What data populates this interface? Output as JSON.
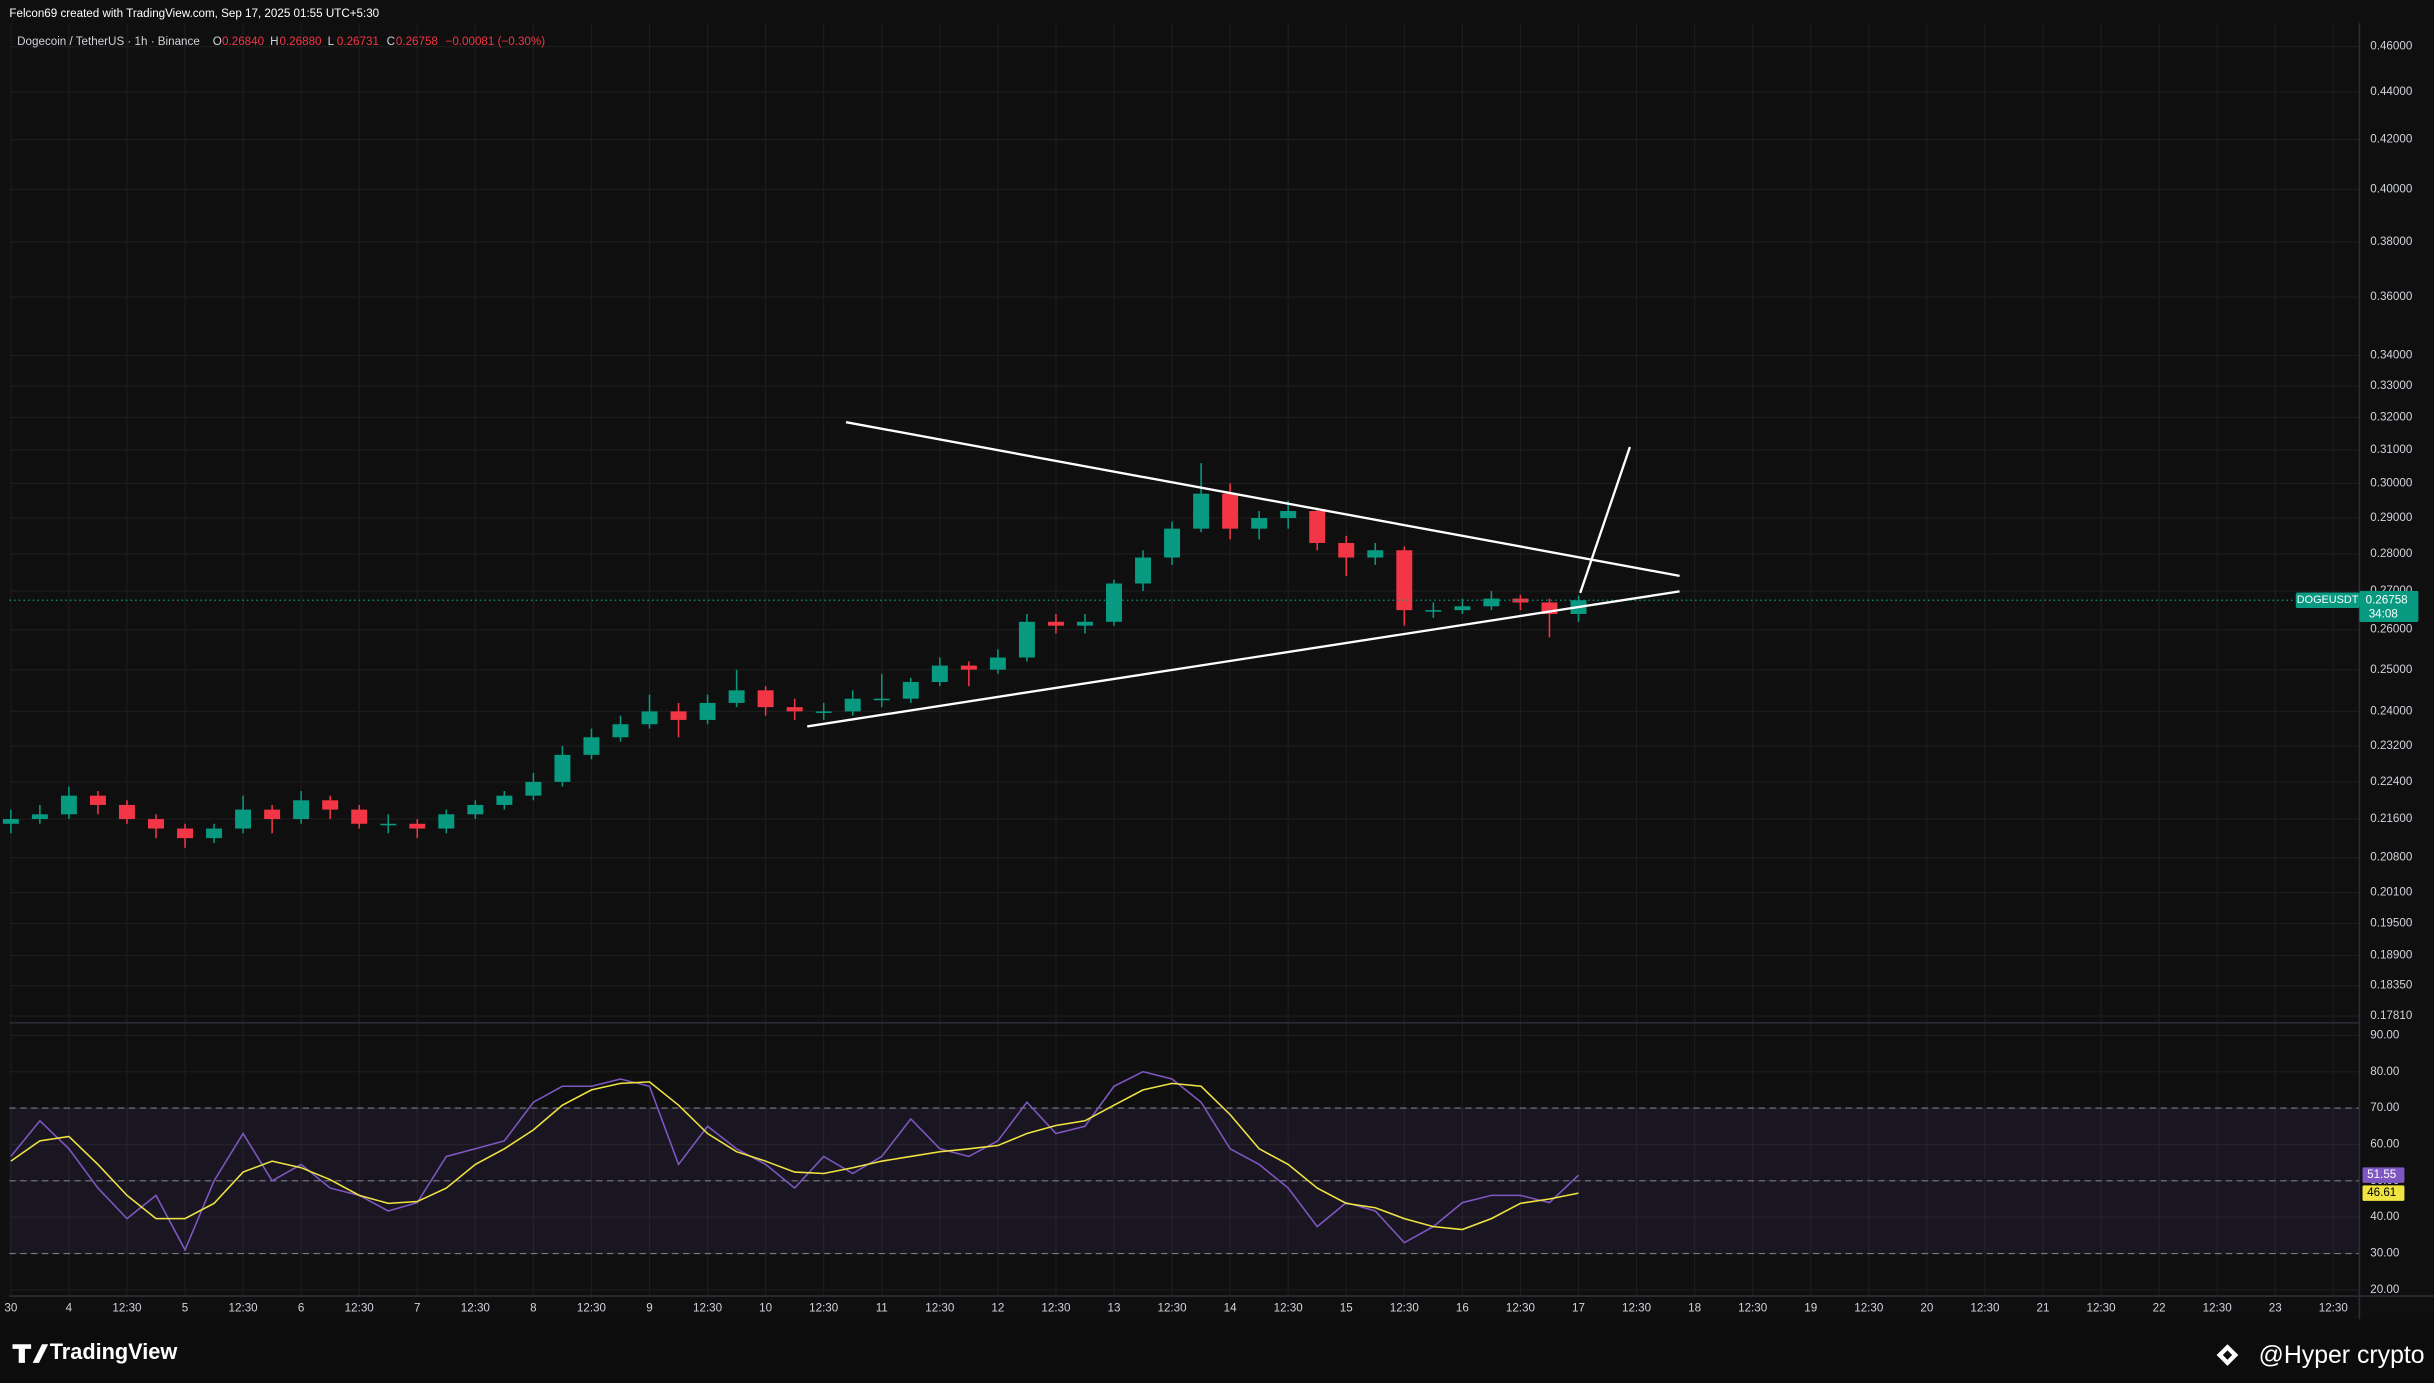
{
  "header": {
    "credit": "Felcon69 created with TradingView.com, Sep 17, 2025 01:55 UTC+5:30",
    "footer_brand": "TradingView",
    "watermark": "@Hyper crypto"
  },
  "chart_data": [
    {
      "type": "candlestick",
      "title": "Dogecoin / TetherUS · 1h · Binance",
      "ohlc_legend": [
        {
          "label": "O",
          "value": "0.26840"
        },
        {
          "label": "H",
          "value": "0.26880"
        },
        {
          "label": "L",
          "value": "0.26731"
        },
        {
          "label": "C",
          "value": "0.26758"
        }
      ],
      "change": "−0.00081 (−0.30%)",
      "symbol": "DOGEUSDT",
      "countdown": "34:08",
      "x": [
        0,
        6,
        12,
        18,
        24,
        30,
        36,
        42,
        48,
        54,
        60,
        66,
        72,
        78,
        84,
        90,
        96,
        102,
        108,
        114,
        120,
        126,
        132,
        138,
        144,
        150,
        156,
        162,
        168,
        174,
        180,
        186,
        192,
        198,
        204,
        210,
        216,
        222,
        228,
        234,
        240,
        246,
        252,
        258,
        264,
        270,
        276,
        282,
        288,
        294,
        300,
        306,
        312,
        318,
        324
      ],
      "open": [
        0.215,
        0.216,
        0.217,
        0.221,
        0.219,
        0.216,
        0.214,
        0.212,
        0.214,
        0.218,
        0.216,
        0.22,
        0.218,
        0.215,
        0.215,
        0.214,
        0.217,
        0.219,
        0.221,
        0.224,
        0.23,
        0.234,
        0.237,
        0.24,
        0.238,
        0.242,
        0.245,
        0.241,
        0.24,
        0.24,
        0.243,
        0.243,
        0.247,
        0.251,
        0.25,
        0.253,
        0.262,
        0.261,
        0.262,
        0.272,
        0.279,
        0.287,
        0.297,
        0.287,
        0.29,
        0.292,
        0.283,
        0.279,
        0.281,
        0.265,
        0.265,
        0.266,
        0.268,
        0.267,
        0.264
      ],
      "high": [
        0.218,
        0.219,
        0.223,
        0.222,
        0.22,
        0.217,
        0.215,
        0.215,
        0.221,
        0.219,
        0.222,
        0.221,
        0.219,
        0.217,
        0.216,
        0.218,
        0.22,
        0.222,
        0.226,
        0.232,
        0.236,
        0.239,
        0.244,
        0.242,
        0.244,
        0.25,
        0.246,
        0.243,
        0.242,
        0.245,
        0.249,
        0.248,
        0.253,
        0.252,
        0.255,
        0.264,
        0.264,
        0.264,
        0.273,
        0.281,
        0.289,
        0.306,
        0.3,
        0.292,
        0.295,
        0.293,
        0.285,
        0.283,
        0.282,
        0.267,
        0.268,
        0.27,
        0.269,
        0.268,
        0.2688
      ],
      "low": [
        0.213,
        0.215,
        0.216,
        0.217,
        0.215,
        0.212,
        0.21,
        0.211,
        0.213,
        0.213,
        0.215,
        0.216,
        0.214,
        0.213,
        0.212,
        0.213,
        0.216,
        0.218,
        0.22,
        0.223,
        0.229,
        0.233,
        0.236,
        0.234,
        0.237,
        0.241,
        0.239,
        0.238,
        0.238,
        0.239,
        0.241,
        0.242,
        0.246,
        0.246,
        0.249,
        0.252,
        0.259,
        0.259,
        0.261,
        0.27,
        0.277,
        0.286,
        0.284,
        0.284,
        0.287,
        0.281,
        0.274,
        0.277,
        0.261,
        0.263,
        0.264,
        0.265,
        0.265,
        0.258,
        0.262
      ],
      "close": [
        0.216,
        0.217,
        0.221,
        0.219,
        0.216,
        0.214,
        0.212,
        0.214,
        0.218,
        0.216,
        0.22,
        0.218,
        0.215,
        0.215,
        0.214,
        0.217,
        0.219,
        0.221,
        0.224,
        0.23,
        0.234,
        0.237,
        0.24,
        0.238,
        0.242,
        0.245,
        0.241,
        0.24,
        0.24,
        0.243,
        0.243,
        0.247,
        0.251,
        0.25,
        0.253,
        0.262,
        0.261,
        0.262,
        0.272,
        0.279,
        0.287,
        0.297,
        0.287,
        0.29,
        0.292,
        0.283,
        0.279,
        0.281,
        0.265,
        0.265,
        0.266,
        0.268,
        0.267,
        0.264,
        0.26758
      ],
      "up_color": "#089981",
      "down_color": "#f23645",
      "log_scale": true,
      "grid": true,
      "xlim": [
        -0.3,
        485.4
      ],
      "ylim": [
        0.1772,
        0.4685
      ],
      "yticks": [
        {
          "value": 0.46,
          "label": "0.46000"
        },
        {
          "value": 0.44,
          "label": "0.44000"
        },
        {
          "value": 0.42,
          "label": "0.42000"
        },
        {
          "value": 0.4,
          "label": "0.40000"
        },
        {
          "value": 0.38,
          "label": "0.38000"
        },
        {
          "value": 0.36,
          "label": "0.36000"
        },
        {
          "value": 0.34,
          "label": "0.34000"
        },
        {
          "value": 0.33,
          "label": "0.33000"
        },
        {
          "value": 0.32,
          "label": "0.32000"
        },
        {
          "value": 0.31,
          "label": "0.31000"
        },
        {
          "value": 0.3,
          "label": "0.30000"
        },
        {
          "value": 0.29,
          "label": "0.29000"
        },
        {
          "value": 0.28,
          "label": "0.28000"
        },
        {
          "value": 0.27,
          "label": "0.27000"
        },
        {
          "value": 0.26,
          "label": "0.26000"
        },
        {
          "value": 0.25,
          "label": "0.25000"
        },
        {
          "value": 0.24,
          "label": "0.24000"
        },
        {
          "value": 0.232,
          "label": "0.23200"
        },
        {
          "value": 0.224,
          "label": "0.22400"
        },
        {
          "value": 0.216,
          "label": "0.21600"
        },
        {
          "value": 0.208,
          "label": "0.20800"
        },
        {
          "value": 0.201,
          "label": "0.20100"
        },
        {
          "value": 0.195,
          "label": "0.19500"
        },
        {
          "value": 0.189,
          "label": "0.18900"
        },
        {
          "value": 0.1835,
          "label": "0.18350"
        },
        {
          "value": 0.1781,
          "label": "0.17810"
        }
      ]
    },
    {
      "type": "line",
      "x": [
        0,
        6,
        12,
        18,
        24,
        30,
        36,
        42,
        48,
        54,
        60,
        66,
        72,
        78,
        84,
        90,
        96,
        102,
        108,
        114,
        120,
        126,
        132,
        138,
        144,
        150,
        156,
        162,
        168,
        174,
        180,
        186,
        192,
        198,
        204,
        210,
        216,
        222,
        228,
        234,
        240,
        246,
        252,
        258,
        264,
        270,
        276,
        282,
        288,
        294,
        300,
        306,
        312,
        318,
        324
      ],
      "series": [
        {
          "color": "#7e57c2",
          "values": [
            56.7,
            66.5,
            58.8,
            48,
            39.6,
            46,
            31,
            50,
            63,
            50,
            54.5,
            48,
            46,
            41.7,
            44,
            56.7,
            58.8,
            61,
            71.6,
            76,
            76,
            78,
            76,
            54.5,
            65,
            58.8,
            54.5,
            48,
            56.7,
            52,
            56.7,
            67,
            58.8,
            56.7,
            61,
            71.6,
            63,
            65,
            76,
            80,
            78,
            71.6,
            58.8,
            54.5,
            48,
            37.4,
            44,
            41.7,
            33,
            37.4,
            44,
            46,
            46,
            44,
            51.55
          ]
        },
        {
          "color": "#f0e442",
          "values": [
            55.4,
            61,
            62.2,
            54.5,
            46,
            39.6,
            39.6,
            43.8,
            52.4,
            55.4,
            53.6,
            50.3,
            46,
            43.8,
            44.3,
            48,
            54.5,
            58.8,
            64,
            70.8,
            75,
            76.8,
            77.2,
            70.8,
            63,
            58,
            55.4,
            52.4,
            52,
            53.6,
            55.4,
            56.7,
            58,
            58.8,
            59.7,
            63,
            65.2,
            66.5,
            70.8,
            75,
            76.8,
            76,
            68.2,
            58.8,
            54.5,
            48,
            43.8,
            42.6,
            39.6,
            37.4,
            36.6,
            39.6,
            43.8,
            45,
            46.61
          ]
        }
      ],
      "bands": [
        30,
        50,
        70
      ],
      "band_color": "#7e57c2",
      "xlim": [
        -0.3,
        485.4
      ],
      "ylim": [
        18.3,
        93
      ],
      "yticks": [
        {
          "value": 90,
          "label": "90.00"
        },
        {
          "value": 80,
          "label": "80.00"
        },
        {
          "value": 70,
          "label": "70.00"
        },
        {
          "value": 60,
          "label": "60.00"
        },
        {
          "value": 50,
          "label": "50.00"
        },
        {
          "value": 40,
          "label": "40.00"
        },
        {
          "value": 30,
          "label": "30.00"
        },
        {
          "value": 20,
          "label": "20.00"
        }
      ],
      "xticks": [
        {
          "value": 0,
          "label": "30"
        },
        {
          "value": 12,
          "label": "4"
        },
        {
          "value": 24,
          "label": "12:30"
        },
        {
          "value": 36,
          "label": "5"
        },
        {
          "value": 48,
          "label": "12:30"
        },
        {
          "value": 60,
          "label": "6"
        },
        {
          "value": 72,
          "label": "12:30"
        },
        {
          "value": 84,
          "label": "7"
        },
        {
          "value": 96,
          "label": "12:30"
        },
        {
          "value": 108,
          "label": "8"
        },
        {
          "value": 120,
          "label": "12:30"
        },
        {
          "value": 132,
          "label": "9"
        },
        {
          "value": 144,
          "label": "12:30"
        },
        {
          "value": 156,
          "label": "10"
        },
        {
          "value": 168,
          "label": "12:30"
        },
        {
          "value": 180,
          "label": "11"
        },
        {
          "value": 192,
          "label": "12:30"
        },
        {
          "value": 204,
          "label": "12"
        },
        {
          "value": 216,
          "label": "12:30"
        },
        {
          "value": 228,
          "label": "13"
        },
        {
          "value": 240,
          "label": "12:30"
        },
        {
          "value": 252,
          "label": "14"
        },
        {
          "value": 264,
          "label": "12:30"
        },
        {
          "value": 276,
          "label": "15"
        },
        {
          "value": 288,
          "label": "12:30"
        },
        {
          "value": 300,
          "label": "16"
        },
        {
          "value": 312,
          "label": "12:30"
        },
        {
          "value": 324,
          "label": "17"
        },
        {
          "value": 336,
          "label": "12:30"
        },
        {
          "value": 348,
          "label": "18"
        },
        {
          "value": 360,
          "label": "12:30"
        },
        {
          "value": 372,
          "label": "19"
        },
        {
          "value": 384,
          "label": "12:30"
        },
        {
          "value": 396,
          "label": "20"
        },
        {
          "value": 408,
          "label": "12:30"
        },
        {
          "value": 420,
          "label": "21"
        },
        {
          "value": 432,
          "label": "12:30"
        },
        {
          "value": 444,
          "label": "22"
        },
        {
          "value": 456,
          "label": "12:30"
        },
        {
          "value": 468,
          "label": "23"
        },
        {
          "value": 480,
          "label": "12:30"
        }
      ]
    }
  ]
}
